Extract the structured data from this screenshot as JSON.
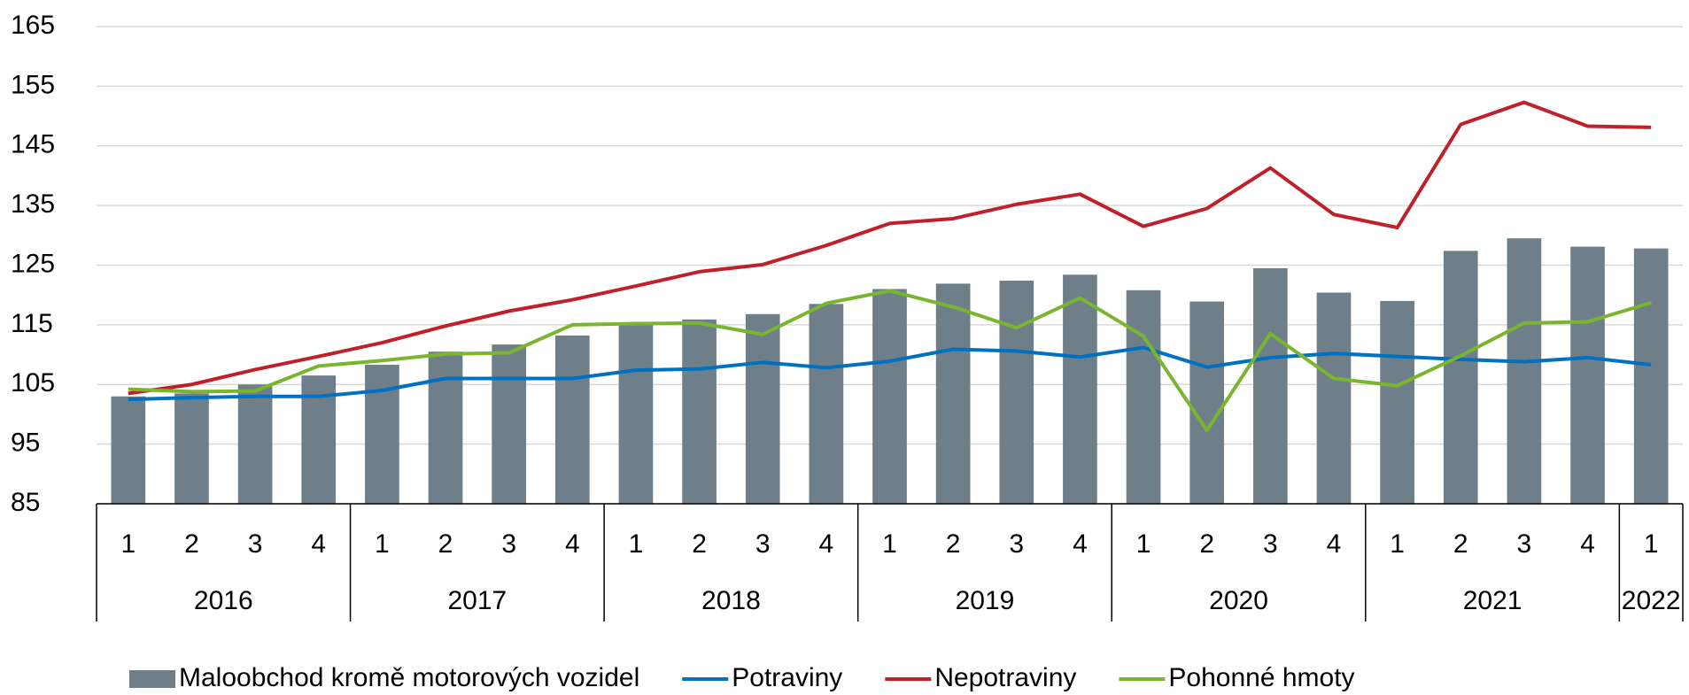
{
  "chart_data": {
    "type": "bar_line",
    "categories": [
      "1",
      "2",
      "3",
      "4",
      "1",
      "2",
      "3",
      "4",
      "1",
      "2",
      "3",
      "4",
      "1",
      "2",
      "3",
      "4",
      "1",
      "2",
      "3",
      "4",
      "1",
      "2",
      "3",
      "4",
      "1"
    ],
    "x_groups": [
      {
        "label": "2016",
        "span": 4
      },
      {
        "label": "2017",
        "span": 4
      },
      {
        "label": "2018",
        "span": 4
      },
      {
        "label": "2019",
        "span": 4
      },
      {
        "label": "2020",
        "span": 4
      },
      {
        "label": "2021",
        "span": 4
      },
      {
        "label": "2022",
        "span": 1
      }
    ],
    "series": [
      {
        "name": "Maloobchod kromě motorových vozidel",
        "type": "bar",
        "color": "#6f7f8a",
        "values": [
          103.0,
          103.5,
          105.0,
          106.5,
          108.3,
          110.5,
          111.7,
          113.2,
          115.0,
          115.9,
          116.8,
          118.5,
          121.0,
          121.9,
          122.4,
          123.4,
          120.8,
          118.9,
          124.5,
          120.4,
          119.0,
          127.4,
          129.5,
          128.1,
          127.8
        ]
      },
      {
        "name": "Potraviny",
        "type": "line",
        "color": "#0070c0",
        "values": [
          102.5,
          102.8,
          103.0,
          103.0,
          104.0,
          106.0,
          106.0,
          106.0,
          107.4,
          107.6,
          108.7,
          107.8,
          108.9,
          110.9,
          110.6,
          109.6,
          111.2,
          107.9,
          109.5,
          110.2,
          109.7,
          109.2,
          108.8,
          109.5,
          108.3
        ]
      },
      {
        "name": "Nepotraviny",
        "type": "line",
        "color": "#c0202a",
        "values": [
          103.5,
          105.0,
          107.5,
          109.7,
          112.0,
          114.8,
          117.3,
          119.2,
          121.5,
          123.9,
          125.1,
          128.3,
          132.0,
          132.8,
          135.2,
          136.9,
          131.5,
          134.5,
          141.3,
          133.5,
          131.3,
          148.6,
          152.3,
          148.3,
          148.1
        ]
      },
      {
        "name": "Pohonné hmoty",
        "type": "line",
        "color": "#7ab530",
        "values": [
          104.2,
          103.8,
          103.9,
          108.1,
          109.0,
          110.1,
          110.3,
          115.0,
          115.2,
          115.3,
          113.4,
          118.6,
          120.7,
          118.0,
          114.5,
          119.5,
          113.1,
          97.3,
          113.5,
          106.0,
          104.8,
          109.8,
          115.3,
          115.5,
          118.7
        ]
      }
    ],
    "ylim": [
      85,
      165
    ],
    "yticks": [
      85,
      95,
      105,
      115,
      125,
      135,
      145,
      155,
      165
    ],
    "grid": true,
    "legend": "bottom"
  }
}
